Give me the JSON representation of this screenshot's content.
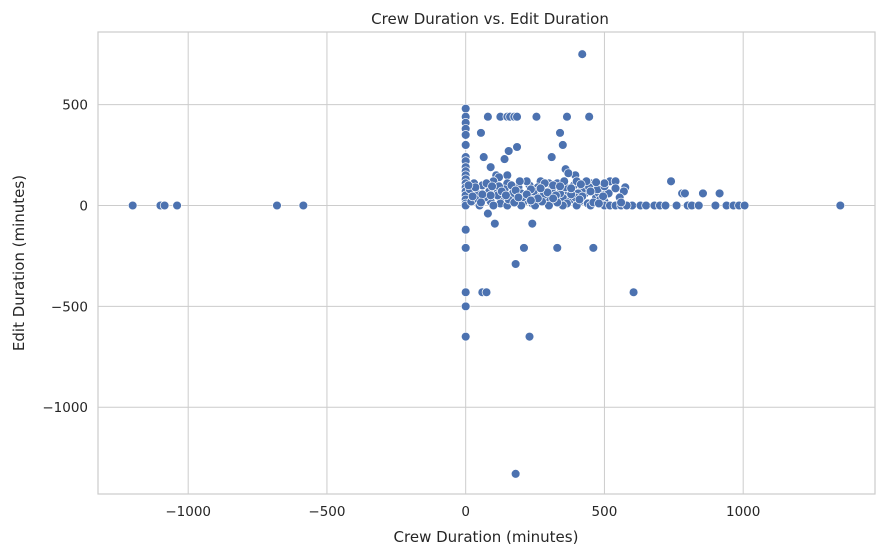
{
  "chart_data": {
    "type": "scatter",
    "title": "Crew Duration vs. Edit Duration",
    "xlabel": "Crew Duration (minutes)",
    "ylabel": "Edit Duration (minutes)",
    "xlim": [
      -1325,
      1475
    ],
    "ylim": [
      -1430,
      860
    ],
    "xticks": [
      -1000,
      -500,
      0,
      500,
      1000
    ],
    "yticks": [
      -1000,
      -500,
      0,
      500
    ],
    "xtick_labels": [
      "−1000",
      "−500",
      "0",
      "500",
      "1000"
    ],
    "ytick_labels": [
      "−1000",
      "−500",
      "0",
      "500"
    ],
    "grid": true,
    "marker_color": "#4c72b0",
    "points": [
      [
        -1200,
        0
      ],
      [
        -1100,
        0
      ],
      [
        -1085,
        0
      ],
      [
        -1040,
        0
      ],
      [
        -680,
        0
      ],
      [
        -585,
        0
      ],
      [
        0,
        480
      ],
      [
        0,
        440
      ],
      [
        0,
        410
      ],
      [
        0,
        380
      ],
      [
        0,
        350
      ],
      [
        0,
        300
      ],
      [
        0,
        240
      ],
      [
        0,
        220
      ],
      [
        0,
        190
      ],
      [
        0,
        170
      ],
      [
        0,
        150
      ],
      [
        0,
        130
      ],
      [
        0,
        110
      ],
      [
        0,
        90
      ],
      [
        0,
        70
      ],
      [
        0,
        50
      ],
      [
        0,
        30
      ],
      [
        0,
        10
      ],
      [
        0,
        0
      ],
      [
        0,
        -120
      ],
      [
        0,
        -210
      ],
      [
        0,
        -430
      ],
      [
        0,
        -500
      ],
      [
        0,
        -650
      ],
      [
        55,
        360
      ],
      [
        80,
        440
      ],
      [
        125,
        440
      ],
      [
        150,
        440
      ],
      [
        160,
        440
      ],
      [
        175,
        440
      ],
      [
        185,
        440
      ],
      [
        255,
        440
      ],
      [
        365,
        440
      ],
      [
        445,
        440
      ],
      [
        420,
        750
      ],
      [
        140,
        230
      ],
      [
        155,
        270
      ],
      [
        185,
        290
      ],
      [
        310,
        240
      ],
      [
        340,
        360
      ],
      [
        350,
        300
      ],
      [
        360,
        180
      ],
      [
        65,
        240
      ],
      [
        90,
        190
      ],
      [
        150,
        150
      ],
      [
        110,
        150
      ],
      [
        120,
        140
      ],
      [
        395,
        150
      ],
      [
        370,
        160
      ],
      [
        520,
        120
      ],
      [
        540,
        120
      ],
      [
        575,
        90
      ],
      [
        570,
        70
      ],
      [
        740,
        120
      ],
      [
        780,
        60
      ],
      [
        790,
        60
      ],
      [
        855,
        60
      ],
      [
        915,
        60
      ],
      [
        800,
        0
      ],
      [
        815,
        0
      ],
      [
        840,
        0
      ],
      [
        900,
        0
      ],
      [
        940,
        0
      ],
      [
        965,
        0
      ],
      [
        985,
        0
      ],
      [
        1005,
        0
      ],
      [
        1350,
        0
      ],
      [
        600,
        0
      ],
      [
        630,
        0
      ],
      [
        650,
        0
      ],
      [
        680,
        0
      ],
      [
        700,
        0
      ],
      [
        720,
        0
      ],
      [
        760,
        0
      ],
      [
        80,
        -40
      ],
      [
        105,
        -90
      ],
      [
        240,
        -90
      ],
      [
        210,
        -210
      ],
      [
        330,
        -210
      ],
      [
        460,
        -210
      ],
      [
        180,
        -290
      ],
      [
        60,
        -430
      ],
      [
        75,
        -430
      ],
      [
        605,
        -430
      ],
      [
        230,
        -650
      ],
      [
        180,
        -1330
      ],
      [
        20,
        20
      ],
      [
        40,
        60
      ],
      [
        60,
        100
      ],
      [
        90,
        20
      ],
      [
        110,
        80
      ],
      [
        130,
        40
      ],
      [
        150,
        110
      ],
      [
        170,
        60
      ],
      [
        190,
        90
      ],
      [
        210,
        20
      ],
      [
        230,
        100
      ],
      [
        250,
        50
      ],
      [
        270,
        120
      ],
      [
        290,
        30
      ],
      [
        310,
        80
      ],
      [
        330,
        110
      ],
      [
        350,
        40
      ],
      [
        370,
        70
      ],
      [
        390,
        100
      ],
      [
        410,
        20
      ],
      [
        430,
        60
      ],
      [
        450,
        110
      ],
      [
        470,
        40
      ],
      [
        490,
        80
      ],
      [
        30,
        110
      ],
      [
        70,
        40
      ],
      [
        100,
        120
      ],
      [
        140,
        80
      ],
      [
        160,
        20
      ],
      [
        200,
        60
      ],
      [
        220,
        120
      ],
      [
        240,
        10
      ],
      [
        260,
        90
      ],
      [
        280,
        50
      ],
      [
        300,
        110
      ],
      [
        320,
        20
      ],
      [
        340,
        60
      ],
      [
        360,
        90
      ],
      [
        380,
        30
      ],
      [
        400,
        120
      ],
      [
        420,
        80
      ],
      [
        440,
        10
      ],
      [
        460,
        100
      ],
      [
        480,
        60
      ],
      [
        500,
        20
      ],
      [
        15,
        80
      ],
      [
        45,
        30
      ],
      [
        85,
        70
      ],
      [
        125,
        10
      ],
      [
        165,
        100
      ],
      [
        205,
        40
      ],
      [
        245,
        70
      ],
      [
        285,
        110
      ],
      [
        325,
        50
      ],
      [
        365,
        10
      ],
      [
        405,
        60
      ],
      [
        445,
        90
      ],
      [
        485,
        30
      ],
      [
        50,
        0
      ],
      [
        100,
        0
      ],
      [
        150,
        0
      ],
      [
        200,
        0
      ],
      [
        250,
        0
      ],
      [
        300,
        0
      ],
      [
        350,
        0
      ],
      [
        400,
        0
      ],
      [
        450,
        0
      ],
      [
        500,
        0
      ],
      [
        520,
        0
      ],
      [
        540,
        0
      ],
      [
        560,
        0
      ],
      [
        580,
        0
      ],
      [
        35,
        90
      ],
      [
        75,
        110
      ],
      [
        115,
        50
      ],
      [
        155,
        30
      ],
      [
        195,
        120
      ],
      [
        235,
        80
      ],
      [
        275,
        20
      ],
      [
        315,
        100
      ],
      [
        355,
        120
      ],
      [
        395,
        40
      ],
      [
        435,
        120
      ],
      [
        475,
        80
      ],
      [
        515,
        60
      ],
      [
        555,
        40
      ],
      [
        120,
        95
      ],
      [
        180,
        75
      ],
      [
        260,
        35
      ],
      [
        340,
        95
      ],
      [
        420,
        45
      ],
      [
        500,
        95
      ],
      [
        60,
        55
      ],
      [
        220,
        55
      ],
      [
        380,
        55
      ],
      [
        460,
        15
      ],
      [
        540,
        85
      ],
      [
        25,
        45
      ],
      [
        95,
        95
      ],
      [
        175,
        15
      ],
      [
        295,
        65
      ],
      [
        415,
        105
      ],
      [
        495,
        45
      ],
      [
        560,
        15
      ],
      [
        10,
        100
      ],
      [
        90,
        50
      ],
      [
        270,
        85
      ],
      [
        330,
        15
      ],
      [
        450,
        70
      ],
      [
        500,
        110
      ],
      [
        190,
        40
      ],
      [
        130,
        70
      ],
      [
        410,
        30
      ],
      [
        235,
        25
      ],
      [
        380,
        85
      ],
      [
        470,
        115
      ],
      [
        55,
        15
      ],
      [
        145,
        50
      ],
      [
        315,
        35
      ],
      [
        480,
        10
      ]
    ]
  }
}
